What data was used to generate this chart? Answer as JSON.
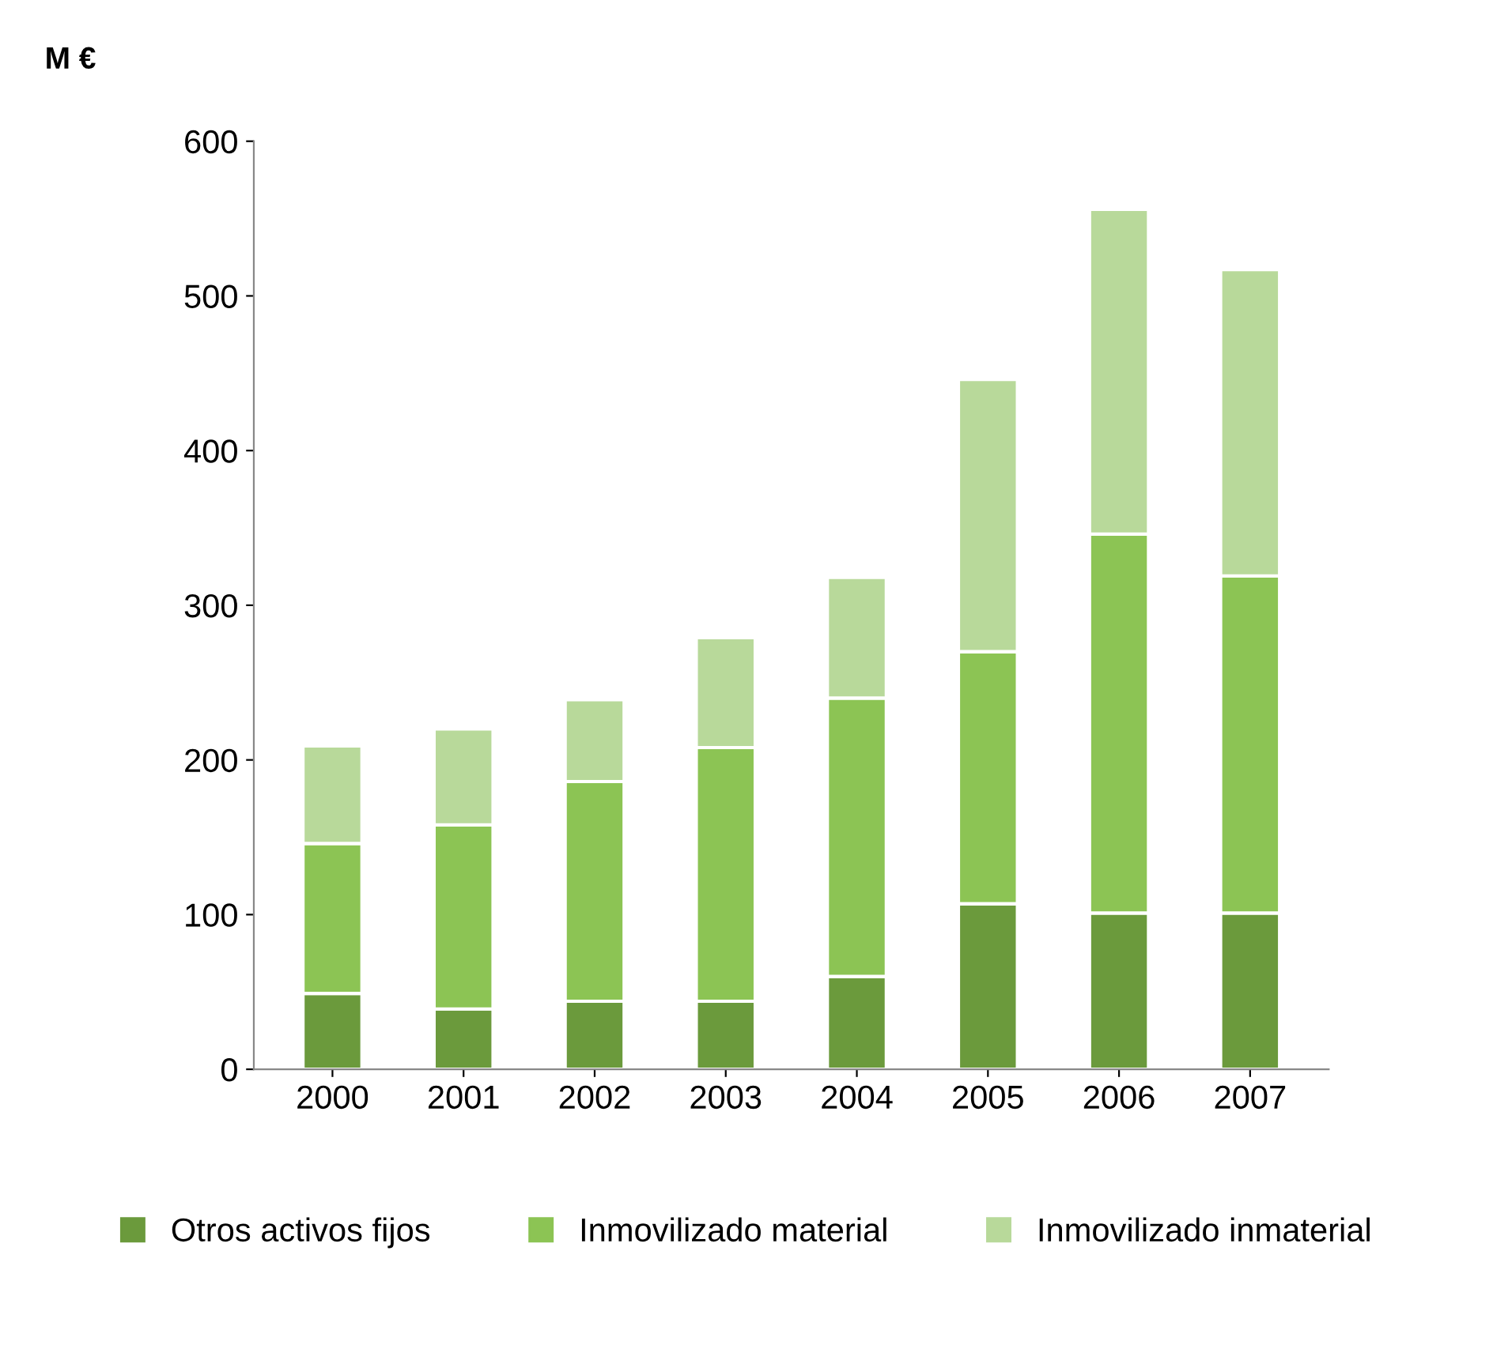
{
  "chart_data": {
    "type": "bar",
    "stacked": true,
    "ylabel": "M €",
    "categories": [
      "2000",
      "2001",
      "2002",
      "2003",
      "2004",
      "2005",
      "2006",
      "2007"
    ],
    "series": [
      {
        "name": "Otros activos fijos",
        "color": "#6b9a3c",
        "values": [
          49,
          39,
          44,
          44,
          60,
          107,
          101,
          101
        ]
      },
      {
        "name": "Inmovilizado material",
        "color": "#8cc454",
        "values": [
          97,
          119,
          142,
          164,
          180,
          163,
          245,
          218
        ]
      },
      {
        "name": "Inmovilizado inmaterial",
        "color": "#b8d99a",
        "values": [
          63,
          62,
          53,
          71,
          78,
          176,
          210,
          198
        ]
      }
    ],
    "ylim": [
      0,
      600
    ],
    "yticks": [
      0,
      100,
      200,
      300,
      400,
      500,
      600
    ],
    "grid": false,
    "legend": "bottom"
  }
}
